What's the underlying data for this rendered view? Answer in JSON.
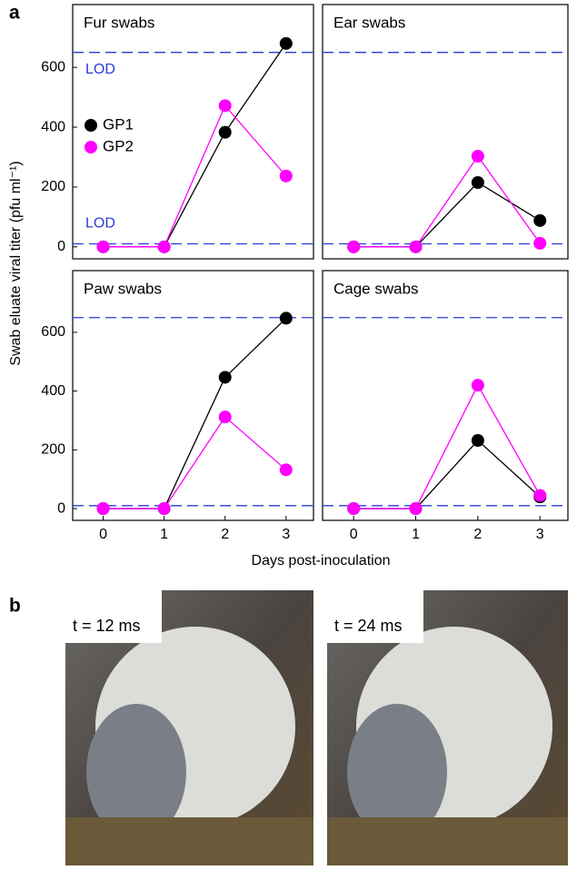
{
  "panel_labels": [
    "a",
    "b"
  ],
  "shared_axes": {
    "ylabel": "Swab eluate viral titer (pfu ml⁻¹)",
    "xlabel": "Days post-inoculation"
  },
  "chart_data": [
    {
      "type": "line",
      "title": "Fur swabs",
      "x": [
        0,
        1,
        2,
        3
      ],
      "xlim": [
        -0.5,
        3.45
      ],
      "ylim": [
        -40,
        810
      ],
      "yticks": [
        0,
        200,
        400,
        600
      ],
      "legend": true,
      "reference_lines": [
        {
          "value": 650,
          "label": "LOD"
        },
        {
          "value": 10,
          "label": "LOD"
        }
      ],
      "reference_color": "#2a3ad8",
      "series": [
        {
          "name": "GP1",
          "color": "#000000",
          "values": [
            0,
            0,
            383,
            680
          ]
        },
        {
          "name": "GP2",
          "color": "#ff00ff",
          "values": [
            0,
            0,
            472,
            237
          ]
        }
      ]
    },
    {
      "type": "line",
      "title": "Ear swabs",
      "x": [
        0,
        1,
        2,
        3
      ],
      "xlim": [
        -0.5,
        3.45
      ],
      "ylim": [
        -40,
        810
      ],
      "reference_lines": [
        {
          "value": 650
        },
        {
          "value": 10
        }
      ],
      "reference_color": "#2a3ad8",
      "series": [
        {
          "color": "#000000",
          "values": [
            0,
            0,
            215,
            88
          ]
        },
        {
          "color": "#ff00ff",
          "values": [
            0,
            0,
            303,
            12
          ]
        }
      ]
    },
    {
      "type": "line",
      "title": "Paw swabs",
      "x": [
        0,
        1,
        2,
        3
      ],
      "xlim": [
        -0.5,
        3.45
      ],
      "ylim": [
        -40,
        810
      ],
      "yticks": [
        0,
        200,
        400,
        600
      ],
      "xticks": [
        0,
        1,
        2,
        3
      ],
      "reference_lines": [
        {
          "value": 650
        },
        {
          "value": 10
        }
      ],
      "reference_color": "#2a3ad8",
      "series": [
        {
          "color": "#000000",
          "values": [
            0,
            0,
            447,
            648
          ]
        },
        {
          "color": "#ff00ff",
          "values": [
            0,
            0,
            312,
            132
          ]
        }
      ]
    },
    {
      "type": "line",
      "title": "Cage swabs",
      "x": [
        0,
        1,
        2,
        3
      ],
      "xlim": [
        -0.5,
        3.45
      ],
      "ylim": [
        -40,
        810
      ],
      "xticks": [
        0,
        1,
        2,
        3
      ],
      "reference_lines": [
        {
          "value": 650
        },
        {
          "value": 10
        }
      ],
      "reference_color": "#2a3ad8",
      "series": [
        {
          "color": "#000000",
          "values": [
            0,
            0,
            232,
            40
          ]
        },
        {
          "color": "#ff00ff",
          "values": [
            0,
            0,
            420,
            45
          ]
        }
      ]
    }
  ],
  "photos": [
    {
      "label": "t = 12 ms"
    },
    {
      "label": "t = 24 ms"
    }
  ]
}
